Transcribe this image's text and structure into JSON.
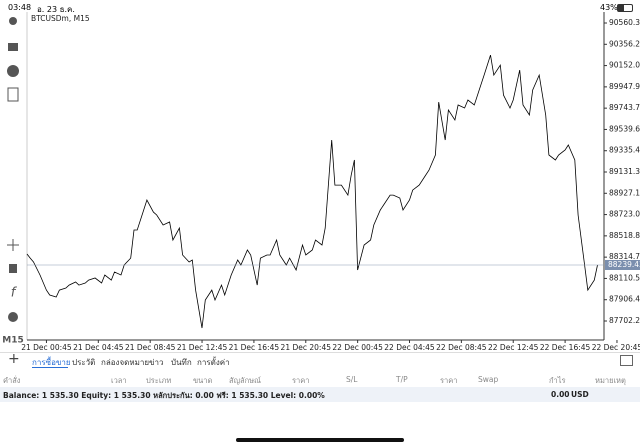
{
  "status_bar": {
    "time": "03:48",
    "date": "อ. 23 ธ.ค.",
    "battery": "43%"
  },
  "chart_data": {
    "type": "line",
    "title": "BTCUSDm, M15",
    "timeframe": "M15",
    "x": [
      0,
      1,
      2,
      4,
      6,
      7,
      9,
      10,
      12,
      13,
      15,
      16,
      18,
      19,
      21,
      23,
      24,
      26,
      27,
      29,
      30,
      32,
      33,
      34,
      36,
      37,
      39,
      40,
      42,
      44,
      45,
      47,
      48,
      50,
      51,
      52,
      54,
      55,
      57,
      58,
      60,
      61,
      63,
      65,
      66,
      68,
      69,
      71,
      72,
      74,
      75,
      77,
      78,
      80,
      81,
      83,
      85,
      86,
      88,
      89,
      91,
      92,
      94,
      95,
      96,
      97,
      99,
      100,
      101,
      102,
      104,
      106,
      107,
      109,
      110,
      112,
      113,
      115,
      116,
      118,
      119,
      121,
      123,
      124,
      126,
      127,
      129,
      130,
      132,
      133,
      135,
      136,
      138,
      140,
      141,
      143,
      144,
      146,
      147,
      149,
      150,
      152,
      153,
      155,
      156,
      158,
      160,
      161,
      163,
      164,
      166,
      167,
      169,
      170,
      172,
      173,
      175,
      176
    ],
    "series": [
      {
        "name": "BTCUSDm",
        "color": "#000000",
        "values": [
          88345,
          88306,
          88268,
          88143,
          87999,
          87952,
          87932,
          87999,
          88019,
          88047,
          88076,
          88047,
          88067,
          88095,
          88115,
          88067,
          88143,
          88095,
          88172,
          88143,
          88239,
          88306,
          88575,
          88575,
          88767,
          88863,
          88747,
          88719,
          88623,
          88652,
          88479,
          88594,
          88335,
          88268,
          88287,
          87999,
          87635,
          87904,
          87999,
          87904,
          88047,
          87952,
          88143,
          88287,
          88239,
          88383,
          88335,
          88047,
          88306,
          88335,
          88335,
          88479,
          88335,
          88239,
          88306,
          88191,
          88431,
          88335,
          88383,
          88479,
          88431,
          88594,
          89438,
          89006,
          89006,
          89006,
          88910,
          89102,
          89246,
          88191,
          88431,
          88479,
          88623,
          88767,
          88815,
          88910,
          88910,
          88882,
          88767,
          88863,
          88958,
          89006,
          89102,
          89150,
          89294,
          89802,
          89438,
          89726,
          89630,
          89774,
          89745,
          89822,
          89774,
          89965,
          90061,
          90253,
          90061,
          90157,
          89869,
          89745,
          89822,
          90109,
          89774,
          89678,
          89918,
          90061,
          89678,
          89294,
          89246,
          89294,
          89342,
          89390,
          89246,
          88719,
          88239,
          87999,
          88095,
          88239
        ]
      }
    ],
    "last_price": 88239.43,
    "xlim": [
      0,
      178
    ],
    "xticks": [
      {
        "value": 6,
        "label": "21 Dec 00:45"
      },
      {
        "value": 22,
        "label": "21 Dec 04:45"
      },
      {
        "value": 38,
        "label": "21 Dec 08:45"
      },
      {
        "value": 54,
        "label": "21 Dec 12:45"
      },
      {
        "value": 70,
        "label": "21 Dec 16:45"
      },
      {
        "value": 86,
        "label": "21 Dec 20:45"
      },
      {
        "value": 102,
        "label": "22 Dec 00:45"
      },
      {
        "value": 118,
        "label": "22 Dec 04:45"
      },
      {
        "value": 134,
        "label": "22 Dec 08:45"
      },
      {
        "value": 150,
        "label": "22 Dec 12:45"
      },
      {
        "value": 166,
        "label": "22 Dec 16:45"
      },
      {
        "value": 182,
        "label": "22 Dec 20:45"
      }
    ],
    "ylim": [
      87520,
      90666
    ],
    "yticks": [
      87702.25,
      {
        "value": 87906.4,
        "label": "87906.40"
      },
      88110.55,
      {
        "value": 88314.7,
        "label": "88314.70"
      },
      88518.85,
      {
        "value": 88723,
        "label": "88723.00"
      },
      88927.15,
      {
        "value": 89131.3,
        "label": "89131.30"
      },
      89335.45,
      {
        "value": 89539.6,
        "label": "89539.60"
      },
      89743.75,
      {
        "value": 89947.9,
        "label": "89947.90"
      },
      90152.05,
      {
        "value": 90356.2,
        "label": "90356.20"
      },
      90560.35
    ],
    "grid": false
  },
  "tabs": [
    "การซื้อขาย",
    "ประวัติ",
    "กล่องจดหมาย",
    "ข่าว",
    "บันทึก",
    "การตั้งค่า"
  ],
  "columns": [
    "คำสั่ง",
    "เวลา",
    "ประเภท",
    "ขนาด",
    "สัญลักษณ์",
    "ราคา",
    "S/L",
    "T/P",
    "ราคา",
    "Swap",
    "กำไร",
    "หมายเหตุ"
  ],
  "summary": {
    "text": "Balance: 1 535.30 Equity: 1 535.30 หลักประกัน: 0.00 ฟรี: 1 535.30 Level: 0.00%",
    "profit": "0.00",
    "currency": "USD"
  }
}
